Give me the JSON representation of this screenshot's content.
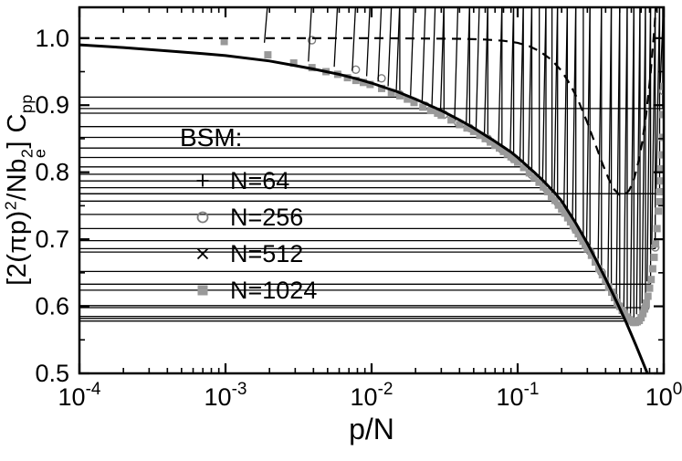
{
  "chart_data": {
    "type": "scatter",
    "title": "",
    "xlabel": "p/N",
    "ylabel": "[2(pip)^2/Nb_e^2] C_pp",
    "ylabel_parts": [
      {
        "t": "[2(πp)"
      },
      {
        "t": "2",
        "pos": "sup"
      },
      {
        "t": "/Nb"
      },
      {
        "stack": {
          "sup": "2",
          "sub": "e"
        }
      },
      {
        "t": "] C"
      },
      {
        "t": "pp",
        "pos": "sub"
      }
    ],
    "xscale": "log",
    "xlim": [
      0.0001,
      1.0
    ],
    "ylim": [
      0.5,
      1.046
    ],
    "yticks": [
      0.5,
      0.6,
      0.7,
      0.8,
      0.9,
      1.0
    ],
    "xtick_base": "10",
    "xtick_exponents": [
      "-4",
      "-3",
      "-2",
      "-1",
      "0"
    ],
    "grid": false,
    "legend_title": "BSM:",
    "legend_position": "inside-left",
    "colors": {
      "black": "#000000",
      "gray_square": "#999999",
      "circle_gray": "#7d7d7d"
    },
    "series": [
      {
        "name": "N=64",
        "marker": "plus",
        "color": "#000000",
        "points": [
          [
            0.0156,
            0.912
          ],
          [
            0.0313,
            0.888
          ],
          [
            0.0469,
            0.868
          ],
          [
            0.0625,
            0.852
          ],
          [
            0.0781,
            0.836
          ],
          [
            0.0938,
            0.822
          ],
          [
            0.1094,
            0.808
          ],
          [
            0.125,
            0.797
          ],
          [
            0.1406,
            0.787
          ],
          [
            0.1563,
            0.777
          ],
          [
            0.1719,
            0.768
          ],
          [
            0.1875,
            0.757
          ],
          [
            0.2188,
            0.737
          ],
          [
            0.25,
            0.716
          ],
          [
            0.2813,
            0.698
          ],
          [
            0.3125,
            0.681
          ],
          [
            0.375,
            0.652
          ],
          [
            0.4375,
            0.624
          ],
          [
            0.5,
            0.601
          ],
          [
            0.5625,
            0.585
          ],
          [
            0.625,
            0.578
          ],
          [
            0.6875,
            0.582
          ],
          [
            0.75,
            0.598
          ],
          [
            0.8125,
            0.633
          ],
          [
            0.875,
            0.686
          ],
          [
            0.9375,
            0.768
          ],
          [
            0.9844,
            0.895
          ]
        ]
      },
      {
        "name": "N=256",
        "marker": "circle",
        "color": "#7d7d7d",
        "points": [
          [
            0.0039,
            0.997
          ],
          [
            0.0078,
            0.953
          ],
          [
            0.0117,
            0.94
          ],
          [
            0.0156,
            0.916
          ],
          [
            0.0234,
            0.899
          ],
          [
            0.0313,
            0.886
          ],
          [
            0.0391,
            0.874
          ],
          [
            0.0469,
            0.866
          ],
          [
            0.0625,
            0.85
          ],
          [
            0.0781,
            0.834
          ],
          [
            0.0938,
            0.82
          ],
          [
            0.125,
            0.796
          ],
          [
            0.1563,
            0.776
          ],
          [
            0.1875,
            0.755
          ],
          [
            0.25,
            0.714
          ],
          [
            0.3125,
            0.682
          ],
          [
            0.375,
            0.651
          ],
          [
            0.5,
            0.6
          ],
          [
            0.625,
            0.577
          ],
          [
            0.75,
            0.599
          ],
          [
            0.875,
            0.688
          ],
          [
            0.9961,
            0.921
          ]
        ]
      },
      {
        "name": "N=512",
        "marker": "x",
        "color": "#000000",
        "points": [
          [
            0.00195,
            0.988
          ],
          [
            0.0039,
            0.96
          ],
          [
            0.00586,
            0.952
          ],
          [
            0.0078,
            0.946
          ],
          [
            0.00977,
            0.938
          ],
          [
            0.0117,
            0.93
          ],
          [
            0.0137,
            0.923
          ],
          [
            0.0156,
            0.917
          ],
          [
            0.0195,
            0.906
          ],
          [
            0.0234,
            0.898
          ],
          [
            0.0273,
            0.891
          ],
          [
            0.0313,
            0.885
          ],
          [
            0.0391,
            0.873
          ],
          [
            0.0469,
            0.863
          ],
          [
            0.0547,
            0.855
          ],
          [
            0.0625,
            0.849
          ],
          [
            0.0781,
            0.833
          ],
          [
            0.0938,
            0.819
          ],
          [
            0.1094,
            0.807
          ],
          [
            0.125,
            0.796
          ],
          [
            0.1563,
            0.775
          ],
          [
            0.1875,
            0.754
          ],
          [
            0.2188,
            0.735
          ],
          [
            0.25,
            0.713
          ],
          [
            0.3125,
            0.681
          ],
          [
            0.375,
            0.65
          ],
          [
            0.4375,
            0.622
          ],
          [
            0.5,
            0.599
          ],
          [
            0.5625,
            0.584
          ],
          [
            0.625,
            0.577
          ],
          [
            0.6875,
            0.583
          ],
          [
            0.75,
            0.599
          ],
          [
            0.8125,
            0.632
          ],
          [
            0.875,
            0.687
          ],
          [
            0.9375,
            0.77
          ],
          [
            0.998,
            0.924
          ]
        ]
      },
      {
        "name": "N=1024",
        "marker": "square",
        "color": "#999999",
        "points": [
          [
            0.00098,
            0.995
          ],
          [
            0.00195,
            0.975
          ],
          [
            0.00293,
            0.963
          ],
          [
            0.00391,
            0.956
          ],
          [
            0.00488,
            0.95
          ],
          [
            0.00586,
            0.946
          ],
          [
            0.00684,
            0.941
          ],
          [
            0.00781,
            0.937
          ],
          [
            0.00879,
            0.934
          ],
          [
            0.00977,
            0.931
          ],
          [
            0.01172,
            0.925
          ],
          [
            0.01367,
            0.919
          ],
          [
            0.01563,
            0.914
          ],
          [
            0.01758,
            0.909
          ],
          [
            0.01953,
            0.904
          ],
          [
            0.02246,
            0.897
          ],
          [
            0.02539,
            0.892
          ],
          [
            0.02832,
            0.888
          ],
          [
            0.03,
            0.885
          ],
          [
            0.035,
            0.878
          ],
          [
            0.04,
            0.871
          ],
          [
            0.045,
            0.866
          ],
          [
            0.05,
            0.861
          ],
          [
            0.055,
            0.855
          ],
          [
            0.06,
            0.85
          ],
          [
            0.065,
            0.845
          ],
          [
            0.07,
            0.84
          ],
          [
            0.075,
            0.836
          ],
          [
            0.08,
            0.831
          ],
          [
            0.085,
            0.827
          ],
          [
            0.09,
            0.823
          ],
          [
            0.095,
            0.819
          ],
          [
            0.1,
            0.815
          ],
          [
            0.11,
            0.807
          ],
          [
            0.12,
            0.799
          ],
          [
            0.13,
            0.792
          ],
          [
            0.14,
            0.785
          ],
          [
            0.15,
            0.778
          ],
          [
            0.16,
            0.771
          ],
          [
            0.17,
            0.764
          ],
          [
            0.18,
            0.758
          ],
          [
            0.19,
            0.751
          ],
          [
            0.2,
            0.745
          ],
          [
            0.21,
            0.739
          ],
          [
            0.22,
            0.732
          ],
          [
            0.23,
            0.726
          ],
          [
            0.24,
            0.72
          ],
          [
            0.25,
            0.714
          ],
          [
            0.26,
            0.708
          ],
          [
            0.27,
            0.702
          ],
          [
            0.28,
            0.697
          ],
          [
            0.29,
            0.691
          ],
          [
            0.3,
            0.686
          ],
          [
            0.32,
            0.676
          ],
          [
            0.34,
            0.666
          ],
          [
            0.36,
            0.656
          ],
          [
            0.38,
            0.647
          ],
          [
            0.4,
            0.638
          ],
          [
            0.42,
            0.629
          ],
          [
            0.44,
            0.621
          ],
          [
            0.46,
            0.613
          ],
          [
            0.48,
            0.606
          ],
          [
            0.5,
            0.6
          ],
          [
            0.52,
            0.594
          ],
          [
            0.54,
            0.589
          ],
          [
            0.56,
            0.584
          ],
          [
            0.58,
            0.58
          ],
          [
            0.6,
            0.578
          ],
          [
            0.62,
            0.576
          ],
          [
            0.64,
            0.576
          ],
          [
            0.66,
            0.577
          ],
          [
            0.68,
            0.579
          ],
          [
            0.7,
            0.583
          ],
          [
            0.72,
            0.589
          ],
          [
            0.74,
            0.596
          ],
          [
            0.76,
            0.605
          ],
          [
            0.78,
            0.615
          ],
          [
            0.8,
            0.627
          ],
          [
            0.82,
            0.64
          ],
          [
            0.84,
            0.656
          ],
          [
            0.86,
            0.673
          ],
          [
            0.88,
            0.693
          ],
          [
            0.9,
            0.716
          ],
          [
            0.92,
            0.742
          ],
          [
            0.93,
            0.756
          ],
          [
            0.94,
            0.771
          ],
          [
            0.95,
            0.787
          ],
          [
            0.96,
            0.805
          ],
          [
            0.97,
            0.826
          ],
          [
            0.98,
            0.852
          ],
          [
            0.99,
            0.886
          ],
          [
            1.0,
            0.928
          ]
        ]
      }
    ],
    "curves": [
      {
        "name": "solid-theory-curve",
        "style": "solid",
        "color": "#000000",
        "width": 3,
        "points": [
          [
            0.0001,
            0.99
          ],
          [
            0.0002,
            0.986
          ],
          [
            0.0004,
            0.981
          ],
          [
            0.0007,
            0.977
          ],
          [
            0.001,
            0.974
          ],
          [
            0.002,
            0.966
          ],
          [
            0.003,
            0.959
          ],
          [
            0.004,
            0.954
          ],
          [
            0.006,
            0.946
          ],
          [
            0.008,
            0.939
          ],
          [
            0.01,
            0.933
          ],
          [
            0.015,
            0.92
          ],
          [
            0.02,
            0.909
          ],
          [
            0.03,
            0.892
          ],
          [
            0.04,
            0.878
          ],
          [
            0.05,
            0.866
          ],
          [
            0.07,
            0.846
          ],
          [
            0.09,
            0.83
          ],
          [
            0.1,
            0.822
          ],
          [
            0.13,
            0.8
          ],
          [
            0.15,
            0.787
          ],
          [
            0.18,
            0.769
          ],
          [
            0.2,
            0.757
          ],
          [
            0.25,
            0.724
          ],
          [
            0.3,
            0.694
          ],
          [
            0.35,
            0.666
          ],
          [
            0.4,
            0.641
          ],
          [
            0.45,
            0.618
          ],
          [
            0.5,
            0.597
          ],
          [
            0.55,
            0.577
          ],
          [
            0.6,
            0.558
          ],
          [
            0.65,
            0.54
          ],
          [
            0.7,
            0.523
          ],
          [
            0.75,
            0.507
          ],
          [
            0.8,
            0.492
          ]
        ]
      },
      {
        "name": "dashed-curve",
        "style": "dashed",
        "color": "#000000",
        "width": 2.2,
        "points": [
          [
            0.0001,
            1.0
          ],
          [
            0.01,
            1.0
          ],
          [
            0.04,
            0.999
          ],
          [
            0.06,
            0.998
          ],
          [
            0.08,
            0.996
          ],
          [
            0.1,
            0.993
          ],
          [
            0.12,
            0.988
          ],
          [
            0.14,
            0.981
          ],
          [
            0.17,
            0.968
          ],
          [
            0.2,
            0.951
          ],
          [
            0.23,
            0.93
          ],
          [
            0.26,
            0.907
          ],
          [
            0.3,
            0.874
          ],
          [
            0.34,
            0.842
          ],
          [
            0.38,
            0.813
          ],
          [
            0.42,
            0.79
          ],
          [
            0.46,
            0.774
          ],
          [
            0.5,
            0.766
          ],
          [
            0.54,
            0.766
          ],
          [
            0.58,
            0.773
          ],
          [
            0.62,
            0.787
          ],
          [
            0.66,
            0.808
          ],
          [
            0.71,
            0.843
          ],
          [
            0.76,
            0.888
          ],
          [
            0.81,
            0.944
          ],
          [
            0.86,
            1.01
          ],
          [
            0.9,
            1.07
          ],
          [
            0.93,
            1.13
          ]
        ]
      }
    ]
  }
}
